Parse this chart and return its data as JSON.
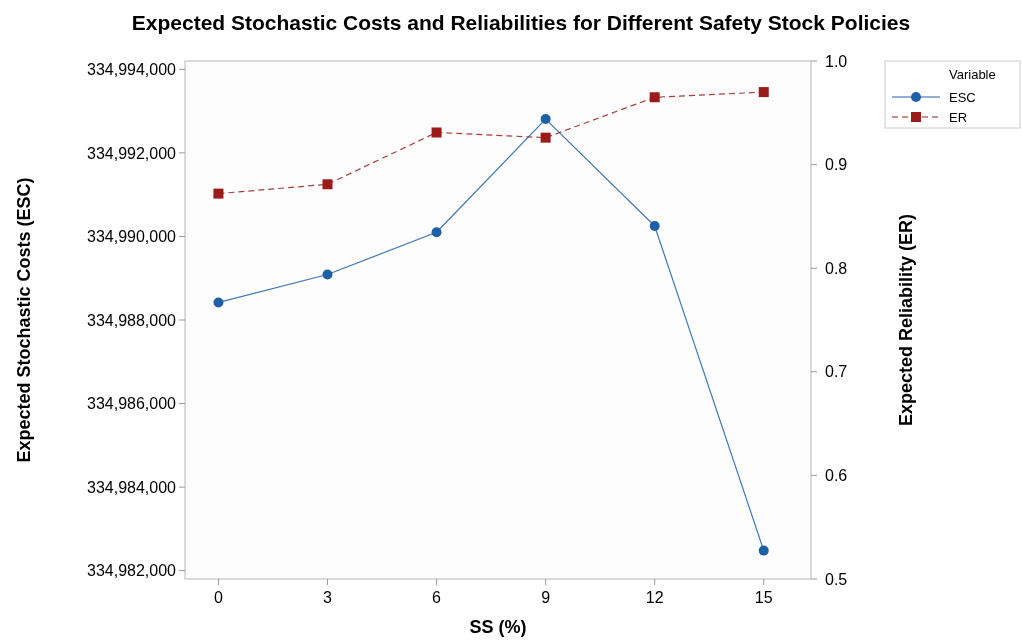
{
  "chart_data": {
    "type": "line",
    "title": "Expected Stochastic Costs and Reliabilities for Different Safety Stock Policies",
    "xlabel": "SS (%)",
    "ylabel": "Expected Stochastic Costs (ESC)",
    "y2label": "Expected Reliability (ER)",
    "legend_title": "Variable",
    "legend": "top right",
    "x": [
      0,
      3,
      6,
      9,
      12,
      15
    ],
    "xlim": [
      -0.92,
      16.3
    ],
    "xticks": [
      0,
      3,
      6,
      9,
      12,
      15
    ],
    "ylim": [
      334981800,
      334994200
    ],
    "yticks": [
      {
        "value": 334982000,
        "label": "334,982,000"
      },
      {
        "value": 334984000,
        "label": "334,984,000"
      },
      {
        "value": 334986000,
        "label": "334,986,000"
      },
      {
        "value": 334988000,
        "label": "334,988,000"
      },
      {
        "value": 334990000,
        "label": "334,990,000"
      },
      {
        "value": 334992000,
        "label": "334,992,000"
      },
      {
        "value": 334994000,
        "label": "334,994,000"
      }
    ],
    "y2lim": [
      0.5,
      1.0
    ],
    "y2ticks": [
      {
        "value": 0.5,
        "label": "0.5"
      },
      {
        "value": 0.6,
        "label": "0.6"
      },
      {
        "value": 0.7,
        "label": "0.7"
      },
      {
        "value": 0.8,
        "label": "0.8"
      },
      {
        "value": 0.9,
        "label": "0.9"
      },
      {
        "value": 1.0,
        "label": "1.0"
      }
    ],
    "series": [
      {
        "name": "ESC",
        "color": "#1f5fa8",
        "marker": "circle",
        "line_style": "solid",
        "values": [
          334988420,
          334989090,
          334990100,
          334992810,
          334990250,
          334982480
        ]
      },
      {
        "name": "ER",
        "color": "#9b1b1b",
        "marker": "square",
        "line_style": "dashed",
        "axis": "y2",
        "values": [
          0.872,
          0.881,
          0.931,
          0.926,
          0.965,
          0.97
        ]
      }
    ]
  }
}
